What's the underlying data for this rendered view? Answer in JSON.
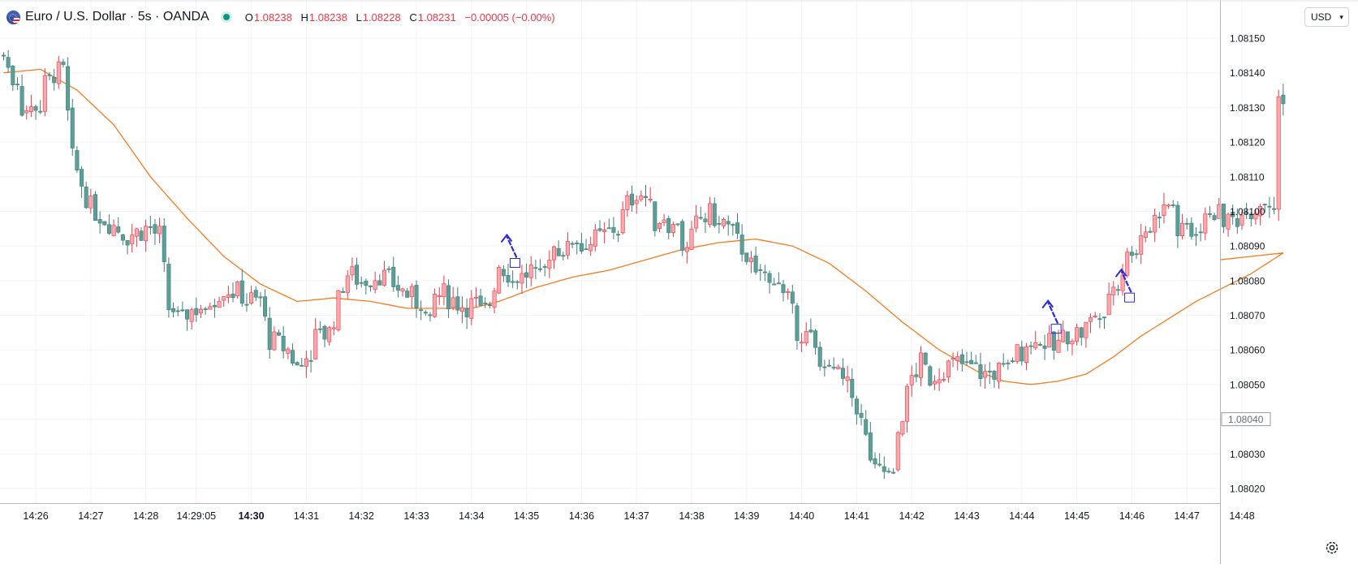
{
  "header": {
    "symbol_title": "Euro / U.S. Dollar · 5s · OANDA",
    "ohlc": {
      "o_key": "O",
      "o_val": "1.08238",
      "h_key": "H",
      "h_val": "1.08238",
      "l_key": "L",
      "l_val": "1.08228",
      "c_key": "C",
      "c_val": "1.08231",
      "change": "−0.00005 (−0.00%)"
    },
    "currency_button": "USD",
    "icons": {
      "symbol": "eur-usd-flag-icon",
      "status": "market-open-icon",
      "chevron": "chevron-down-icon",
      "settings": "gear-icon"
    }
  },
  "colors": {
    "up": "#f7a9ae",
    "up_border": "#f23645",
    "down": "#5d9e98",
    "down_border": "#3d7f78",
    "ma_line": "#f57c1f",
    "arrows": "#2b2bd8",
    "grid": "#f0f3fa",
    "axis_text": "#131722"
  },
  "chart_data": {
    "type": "candlestick",
    "symbol": "Euro / U.S. Dollar",
    "interval": "5s",
    "source": "OANDA",
    "ylim": [
      1.08015,
      1.08157
    ],
    "y_ticks": [
      "1.08150",
      "1.08140",
      "1.08130",
      "1.08120",
      "1.08110",
      "1.08100",
      "1.08090",
      "1.08080",
      "1.08070",
      "1.08060",
      "1.08050",
      "1.08040",
      "1.08030",
      "1.08020"
    ],
    "current_price_label": "1.08040",
    "x_ticks": [
      {
        "label": "14:26",
        "i": 7,
        "bold": false
      },
      {
        "label": "14:27",
        "i": 19,
        "bold": false
      },
      {
        "label": "14:28",
        "i": 31,
        "bold": false
      },
      {
        "label": "14:29:05",
        "i": 42,
        "bold": false
      },
      {
        "label": "14:30",
        "i": 54,
        "bold": true
      },
      {
        "label": "14:31",
        "i": 66,
        "bold": false
      },
      {
        "label": "14:32",
        "i": 78,
        "bold": false
      },
      {
        "label": "14:33",
        "i": 90,
        "bold": false
      },
      {
        "label": "14:34",
        "i": 102,
        "bold": false
      },
      {
        "label": "14:35",
        "i": 114,
        "bold": false
      },
      {
        "label": "14:36",
        "i": 126,
        "bold": false
      },
      {
        "label": "14:37",
        "i": 138,
        "bold": false
      },
      {
        "label": "14:38",
        "i": 150,
        "bold": false
      },
      {
        "label": "14:39",
        "i": 162,
        "bold": false
      },
      {
        "label": "14:40",
        "i": 174,
        "bold": false
      },
      {
        "label": "14:41",
        "i": 186,
        "bold": false
      },
      {
        "label": "14:42",
        "i": 198,
        "bold": false
      },
      {
        "label": "14:43",
        "i": 210,
        "bold": false
      },
      {
        "label": "14:44",
        "i": 222,
        "bold": false
      },
      {
        "label": "14:45",
        "i": 234,
        "bold": false
      },
      {
        "label": "14:46",
        "i": 246,
        "bold": false
      },
      {
        "label": "14:47",
        "i": 258,
        "bold": false
      },
      {
        "label": "14:48",
        "i": 270,
        "bold": false
      }
    ],
    "close_keyframes": [
      [
        0,
        1.08145
      ],
      [
        2,
        1.08138
      ],
      [
        4,
        1.0813
      ],
      [
        6,
        1.08129
      ],
      [
        8,
        1.08133
      ],
      [
        10,
        1.0814
      ],
      [
        13,
        1.0814
      ],
      [
        15,
        1.08115
      ],
      [
        17,
        1.08108
      ],
      [
        19,
        1.08101
      ],
      [
        23,
        1.08097
      ],
      [
        27,
        1.08093
      ],
      [
        31,
        1.08095
      ],
      [
        34,
        1.08093
      ],
      [
        36,
        1.08072
      ],
      [
        40,
        1.08071
      ],
      [
        44,
        1.08073
      ],
      [
        48,
        1.08078
      ],
      [
        52,
        1.08076
      ],
      [
        56,
        1.08073
      ],
      [
        58,
        1.08063
      ],
      [
        62,
        1.0806
      ],
      [
        64,
        1.08055
      ],
      [
        67,
        1.08063
      ],
      [
        71,
        1.08065
      ],
      [
        73,
        1.08074
      ],
      [
        75,
        1.08082
      ],
      [
        78,
        1.0808
      ],
      [
        82,
        1.08082
      ],
      [
        86,
        1.08078
      ],
      [
        90,
        1.08074
      ],
      [
        93,
        1.08075
      ],
      [
        96,
        1.08076
      ],
      [
        100,
        1.08073
      ],
      [
        103,
        1.08073
      ],
      [
        105,
        1.08068
      ],
      [
        108,
        1.08085
      ],
      [
        112,
        1.0808
      ],
      [
        116,
        1.08084
      ],
      [
        120,
        1.0809
      ],
      [
        124,
        1.08088
      ],
      [
        128,
        1.08091
      ],
      [
        131,
        1.08093
      ],
      [
        134,
        1.08096
      ],
      [
        136,
        1.08102
      ],
      [
        138,
        1.08106
      ],
      [
        140,
        1.08104
      ],
      [
        142,
        1.08097
      ],
      [
        144,
        1.08099
      ],
      [
        146,
        1.08095
      ],
      [
        149,
        1.08088
      ],
      [
        151,
        1.08096
      ],
      [
        154,
        1.08099
      ],
      [
        157,
        1.08097
      ],
      [
        160,
        1.08091
      ],
      [
        162,
        1.08088
      ],
      [
        164,
        1.0808
      ],
      [
        168,
        1.08078
      ],
      [
        171,
        1.08074
      ],
      [
        173,
        1.08066
      ],
      [
        176,
        1.08063
      ],
      [
        178,
        1.08055
      ],
      [
        180,
        1.08058
      ],
      [
        182,
        1.08052
      ],
      [
        184,
        1.08049
      ],
      [
        186,
        1.08044
      ],
      [
        188,
        1.08034
      ],
      [
        190,
        1.08024
      ],
      [
        192,
        1.08025
      ],
      [
        194,
        1.0803
      ],
      [
        196,
        1.08042
      ],
      [
        198,
        1.08052
      ],
      [
        200,
        1.08056
      ],
      [
        202,
        1.08052
      ],
      [
        205,
        1.08055
      ],
      [
        208,
        1.08056
      ],
      [
        211,
        1.08055
      ],
      [
        214,
        1.08053
      ],
      [
        217,
        1.08054
      ],
      [
        220,
        1.08058
      ],
      [
        222,
        1.0806
      ],
      [
        224,
        1.08066
      ],
      [
        226,
        1.08064
      ],
      [
        229,
        1.0806
      ],
      [
        232,
        1.08065
      ],
      [
        235,
        1.08065
      ],
      [
        237,
        1.08068
      ],
      [
        240,
        1.08076
      ],
      [
        243,
        1.0808
      ],
      [
        246,
        1.0809
      ],
      [
        249,
        1.08095
      ],
      [
        252,
        1.08099
      ],
      [
        254,
        1.08102
      ],
      [
        256,
        1.08094
      ],
      [
        258,
        1.08093
      ],
      [
        261,
        1.08095
      ],
      [
        264,
        1.081
      ],
      [
        267,
        1.08097
      ],
      [
        270,
        1.08099
      ],
      [
        273,
        1.08101
      ],
      [
        276,
        1.08108
      ],
      [
        278,
        1.08131
      ]
    ],
    "ma_keyframes": [
      [
        0,
        1.0814
      ],
      [
        8,
        1.08141
      ],
      [
        16,
        1.08135
      ],
      [
        24,
        1.08125
      ],
      [
        32,
        1.0811
      ],
      [
        40,
        1.08098
      ],
      [
        48,
        1.08087
      ],
      [
        56,
        1.08079
      ],
      [
        64,
        1.08074
      ],
      [
        72,
        1.08075
      ],
      [
        80,
        1.08074
      ],
      [
        88,
        1.08072
      ],
      [
        96,
        1.08072
      ],
      [
        102,
        1.08072
      ],
      [
        108,
        1.08074
      ],
      [
        116,
        1.08078
      ],
      [
        124,
        1.08081
      ],
      [
        132,
        1.08083
      ],
      [
        140,
        1.08086
      ],
      [
        148,
        1.08089
      ],
      [
        156,
        1.08091
      ],
      [
        164,
        1.08092
      ],
      [
        172,
        1.0809
      ],
      [
        180,
        1.08085
      ],
      [
        188,
        1.08077
      ],
      [
        196,
        1.08068
      ],
      [
        204,
        1.0806
      ],
      [
        212,
        1.08054
      ],
      [
        218,
        1.08051
      ],
      [
        224,
        1.0805
      ],
      [
        230,
        1.08051
      ],
      [
        236,
        1.08053
      ],
      [
        242,
        1.08058
      ],
      [
        248,
        1.08064
      ],
      [
        254,
        1.08069
      ],
      [
        260,
        1.08074
      ],
      [
        266,
        1.08078
      ],
      [
        272,
        1.08082
      ],
      [
        279,
        1.08088
      ]
    ],
    "arrows": [
      {
        "i": 111.5,
        "price": 1.08085
      },
      {
        "i": 229.5,
        "price": 1.08066
      },
      {
        "i": 245.5,
        "price": 1.08075
      }
    ],
    "bar_count": 280
  }
}
